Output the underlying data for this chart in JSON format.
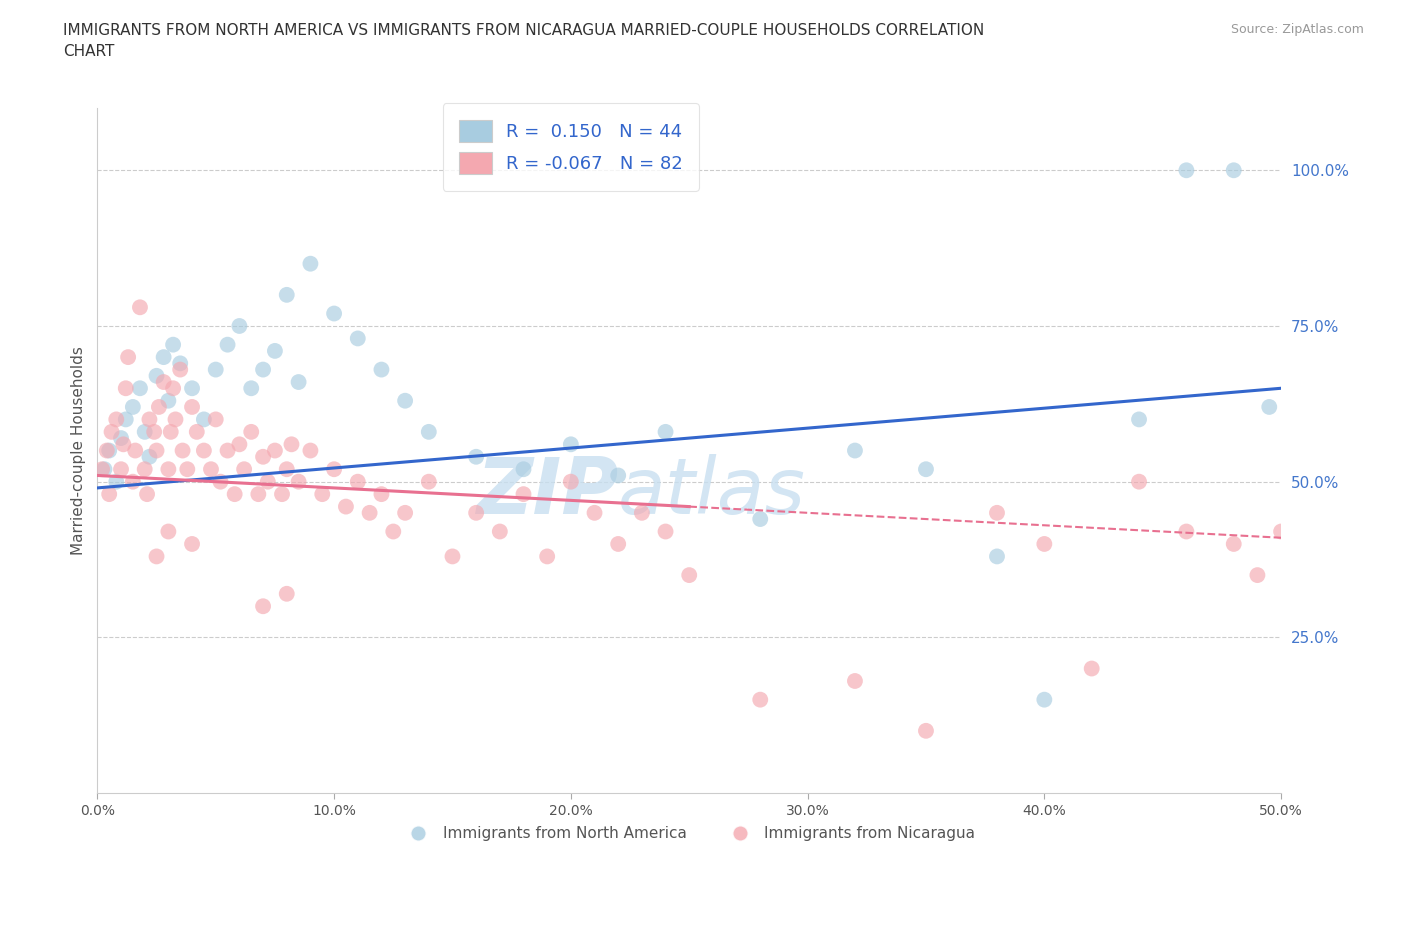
{
  "title": "IMMIGRANTS FROM NORTH AMERICA VS IMMIGRANTS FROM NICARAGUA MARRIED-COUPLE HOUSEHOLDS CORRELATION\nCHART",
  "source": "Source: ZipAtlas.com",
  "ylabel": "Married-couple Households",
  "x_tick_labels": [
    "0.0%",
    "10.0%",
    "20.0%",
    "30.0%",
    "40.0%",
    "50.0%"
  ],
  "x_tick_values": [
    0,
    10,
    20,
    30,
    40,
    50
  ],
  "y_tick_labels": [
    "25.0%",
    "50.0%",
    "75.0%",
    "100.0%"
  ],
  "y_tick_values": [
    25,
    50,
    75,
    100
  ],
  "xlim": [
    0,
    50
  ],
  "ylim": [
    0,
    110
  ],
  "blue_R": 0.15,
  "blue_N": 44,
  "pink_R": -0.067,
  "pink_N": 82,
  "blue_color": "#a8cce0",
  "pink_color": "#f4a8b0",
  "blue_line_color": "#3366cc",
  "pink_line_color": "#e87090",
  "legend_label_blue": "Immigrants from North America",
  "legend_label_pink": "Immigrants from Nicaragua",
  "blue_trend_x0": 0,
  "blue_trend_y0": 49,
  "blue_trend_x1": 50,
  "blue_trend_y1": 65,
  "pink_solid_x0": 0,
  "pink_solid_y0": 51,
  "pink_solid_x1": 25,
  "pink_solid_y1": 46,
  "pink_dash_x0": 25,
  "pink_dash_y0": 46,
  "pink_dash_x1": 50,
  "pink_dash_y1": 41,
  "blue_x": [
    0.3,
    0.5,
    0.8,
    1.0,
    1.2,
    1.5,
    1.8,
    2.0,
    2.2,
    2.5,
    2.8,
    3.0,
    3.2,
    3.5,
    4.0,
    4.5,
    5.0,
    5.5,
    6.0,
    6.5,
    7.0,
    7.5,
    8.0,
    8.5,
    9.0,
    10.0,
    11.0,
    12.0,
    13.0,
    14.0,
    16.0,
    18.0,
    20.0,
    22.0,
    24.0,
    28.0,
    32.0,
    35.0,
    38.0,
    40.0,
    44.0,
    46.0,
    48.0,
    49.5
  ],
  "blue_y": [
    52,
    55,
    50,
    57,
    60,
    62,
    65,
    58,
    54,
    67,
    70,
    63,
    72,
    69,
    65,
    60,
    68,
    72,
    75,
    65,
    68,
    71,
    80,
    66,
    85,
    77,
    73,
    68,
    63,
    58,
    54,
    52,
    56,
    51,
    58,
    44,
    55,
    52,
    38,
    15,
    60,
    100,
    100,
    62
  ],
  "pink_x": [
    0.2,
    0.4,
    0.5,
    0.6,
    0.8,
    1.0,
    1.1,
    1.2,
    1.3,
    1.5,
    1.6,
    1.8,
    2.0,
    2.1,
    2.2,
    2.4,
    2.5,
    2.6,
    2.8,
    3.0,
    3.1,
    3.2,
    3.3,
    3.5,
    3.6,
    3.8,
    4.0,
    4.2,
    4.5,
    4.8,
    5.0,
    5.2,
    5.5,
    5.8,
    6.0,
    6.2,
    6.5,
    6.8,
    7.0,
    7.2,
    7.5,
    7.8,
    8.0,
    8.2,
    8.5,
    9.0,
    9.5,
    10.0,
    10.5,
    11.0,
    11.5,
    12.0,
    12.5,
    13.0,
    14.0,
    15.0,
    16.0,
    17.0,
    18.0,
    19.0,
    20.0,
    21.0,
    22.0,
    23.0,
    24.0,
    25.0,
    28.0,
    32.0,
    35.0,
    38.0,
    40.0,
    42.0,
    44.0,
    46.0,
    48.0,
    49.0,
    50.0,
    7.0,
    8.0,
    2.5,
    3.0,
    4.0
  ],
  "pink_y": [
    52,
    55,
    48,
    58,
    60,
    52,
    56,
    65,
    70,
    50,
    55,
    78,
    52,
    48,
    60,
    58,
    55,
    62,
    66,
    52,
    58,
    65,
    60,
    68,
    55,
    52,
    62,
    58,
    55,
    52,
    60,
    50,
    55,
    48,
    56,
    52,
    58,
    48,
    54,
    50,
    55,
    48,
    52,
    56,
    50,
    55,
    48,
    52,
    46,
    50,
    45,
    48,
    42,
    45,
    50,
    38,
    45,
    42,
    48,
    38,
    50,
    45,
    40,
    45,
    42,
    35,
    15,
    18,
    10,
    45,
    40,
    20,
    50,
    42,
    40,
    35,
    42,
    30,
    32,
    38,
    42,
    40
  ]
}
